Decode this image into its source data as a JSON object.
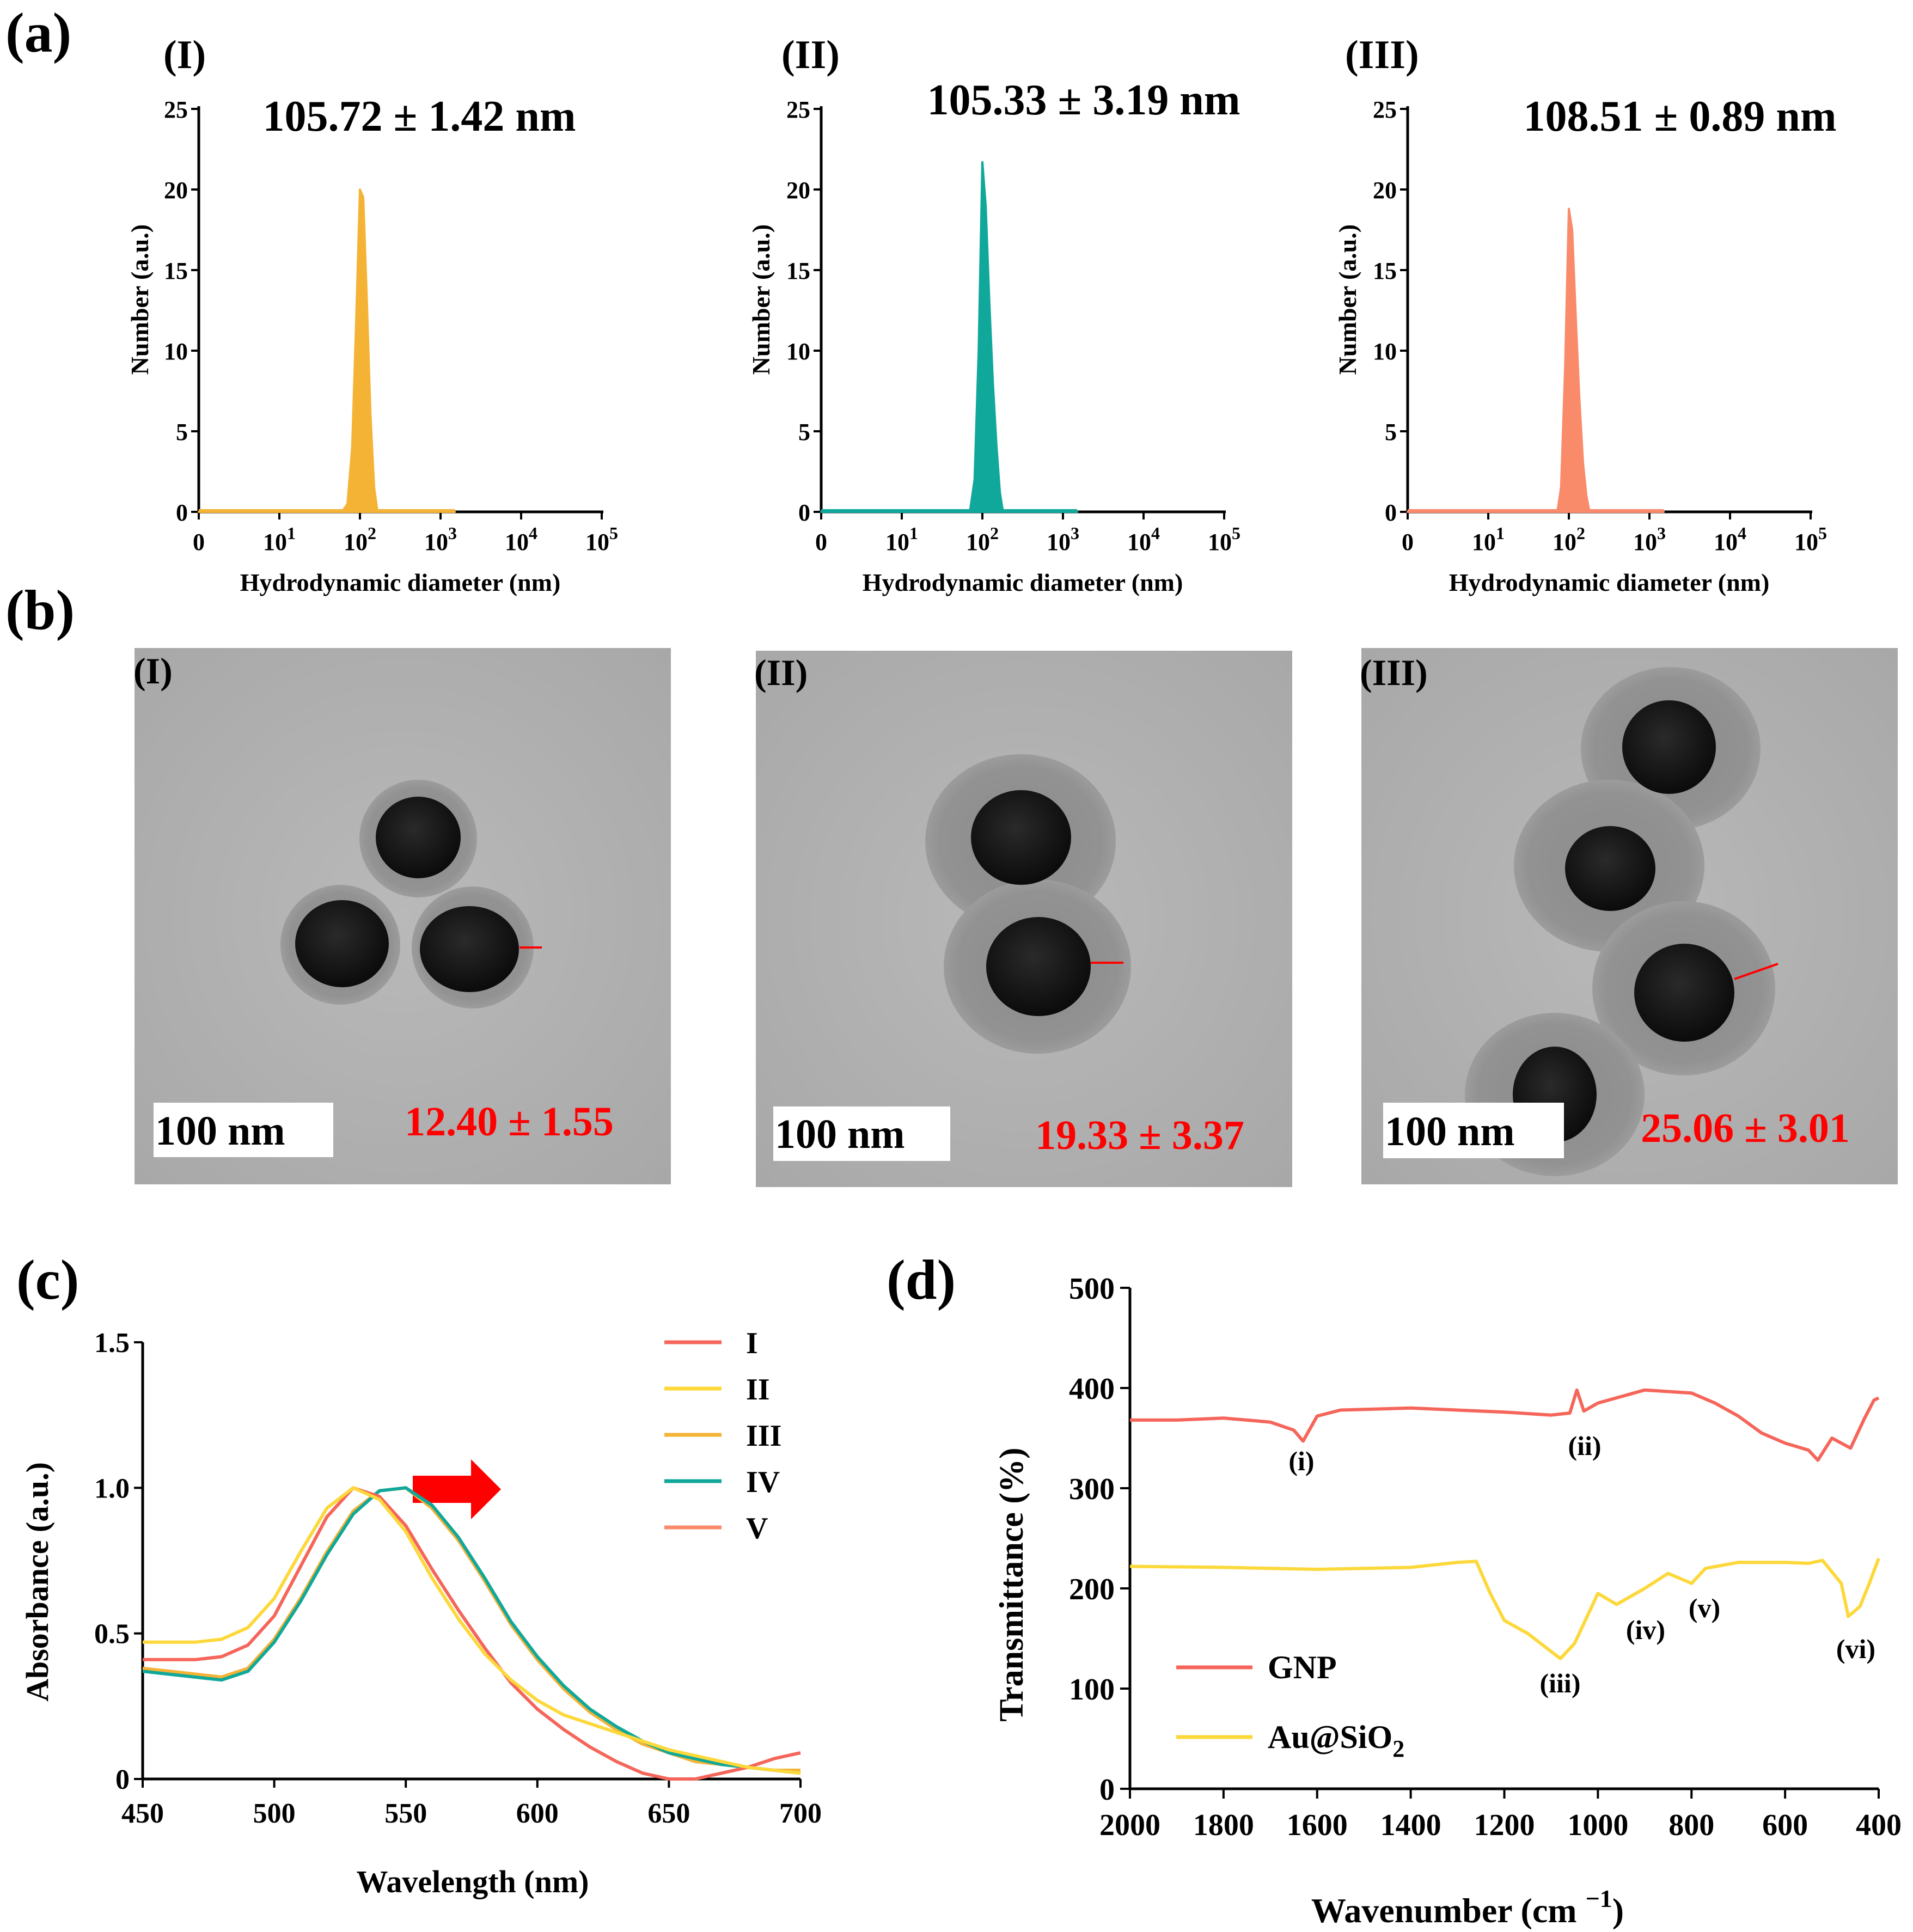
{
  "panel_labels": {
    "a": "(a)",
    "b": "(b)",
    "c": "(c)",
    "d": "(d)"
  },
  "colors": {
    "I": "#f5b335",
    "II": "#10a89a",
    "III": "#f98b6b",
    "red": "#ff0000",
    "gnp": "#f5655a",
    "ausio2": "#fdd83a"
  },
  "dls": [
    {
      "roman": "(I)",
      "stat": "105.72 ± 1.42 nm",
      "ylabel": "Number (a.u.)",
      "xlabel": "Hydrodynamic diameter (nm)",
      "color_key": "I"
    },
    {
      "roman": "(II)",
      "stat": "105.33 ± 3.19 nm",
      "ylabel": "Number (a.u.)",
      "xlabel": "Hydrodynamic diameter (nm)",
      "color_key": "II"
    },
    {
      "roman": "(III)",
      "stat": "108.51 ± 0.89 nm",
      "ylabel": "Number (a.u.)",
      "xlabel": "Hydrodynamic diameter (nm)",
      "color_key": "III"
    }
  ],
  "dls_xticks": [
    {
      "base": "0",
      "exp": ""
    },
    {
      "base": "10",
      "exp": "1"
    },
    {
      "base": "10",
      "exp": "2"
    },
    {
      "base": "10",
      "exp": "3"
    },
    {
      "base": "10",
      "exp": "4"
    },
    {
      "base": "10",
      "exp": "5"
    }
  ],
  "dls_yticks": [
    "0",
    "5",
    "10",
    "15",
    "20",
    "25"
  ],
  "tem": [
    {
      "roman": "(I)",
      "scale": "100 nm",
      "measure": "12.40 ± 1.55"
    },
    {
      "roman": "(II)",
      "scale": "100 nm",
      "measure": "19.33 ± 3.37"
    },
    {
      "roman": "(III)",
      "scale": "100 nm",
      "measure": "25.06 ± 3.01"
    }
  ],
  "chart_data": [
    {
      "panel": "(a)-(I)",
      "type": "area",
      "title": "105.72 ± 1.42 nm",
      "xlabel": "Hydrodynamic diameter (nm)",
      "ylabel": "Number (a.u.)",
      "xscale": "log",
      "ylim": [
        0,
        25
      ],
      "x": [
        1,
        60,
        70,
        80,
        90,
        100,
        110,
        122,
        135,
        150,
        165,
        1500
      ],
      "values": [
        0,
        0,
        0.5,
        4,
        12,
        20,
        19.5,
        13,
        6,
        1.5,
        0,
        0
      ]
    },
    {
      "panel": "(a)-(II)",
      "type": "area",
      "title": "105.33 ± 3.19 nm",
      "xlabel": "Hydrodynamic diameter (nm)",
      "ylabel": "Number (a.u.)",
      "xscale": "log",
      "ylim": [
        0,
        25
      ],
      "x": [
        1,
        70,
        80,
        90,
        100,
        110,
        122,
        135,
        150,
        165,
        180,
        1500
      ],
      "values": [
        0,
        0,
        2,
        10,
        21.7,
        19,
        13,
        8,
        4,
        1.2,
        0,
        0
      ]
    },
    {
      "panel": "(a)-(III)",
      "type": "area",
      "title": "108.51 ± 0.89 nm",
      "xlabel": "Hydrodynamic diameter (nm)",
      "ylabel": "Number (a.u.)",
      "xscale": "log",
      "ylim": [
        0,
        25
      ],
      "x": [
        1,
        72,
        80,
        90,
        100,
        110,
        122,
        135,
        150,
        165,
        180,
        1500
      ],
      "values": [
        0,
        0,
        1.5,
        9,
        18.8,
        17.5,
        12,
        7,
        3,
        1,
        0,
        0
      ]
    },
    {
      "panel": "(c)",
      "type": "line",
      "xlabel": "Wavelength (nm)",
      "ylabel": "Absorbance (a.u.)",
      "xlim": [
        450,
        700
      ],
      "ylim": [
        0,
        1.5
      ],
      "xticks": [
        "450",
        "500",
        "550",
        "600",
        "650",
        "700"
      ],
      "yticks": [
        "0",
        "0.5",
        "1.0",
        "1.5"
      ],
      "categories": [
        450,
        470,
        480,
        490,
        500,
        510,
        520,
        530,
        540,
        550,
        560,
        570,
        580,
        590,
        600,
        610,
        620,
        630,
        640,
        650,
        660,
        670,
        680,
        690,
        700
      ],
      "series": [
        {
          "name": "I",
          "color": "#f5655a",
          "values": [
            0.41,
            0.41,
            0.42,
            0.46,
            0.56,
            0.73,
            0.9,
            1.0,
            0.97,
            0.87,
            0.72,
            0.58,
            0.45,
            0.33,
            0.24,
            0.17,
            0.11,
            0.06,
            0.02,
            0.0,
            0.0,
            0.02,
            0.04,
            0.07,
            0.09
          ]
        },
        {
          "name": "II",
          "color": "#fdd83a",
          "values": [
            0.47,
            0.47,
            0.48,
            0.52,
            0.62,
            0.78,
            0.93,
            1.0,
            0.96,
            0.85,
            0.69,
            0.55,
            0.43,
            0.34,
            0.27,
            0.22,
            0.19,
            0.16,
            0.13,
            0.1,
            0.08,
            0.06,
            0.04,
            0.03,
            0.02
          ]
        },
        {
          "name": "III",
          "color": "#f5b335",
          "values": [
            0.38,
            0.36,
            0.35,
            0.38,
            0.48,
            0.62,
            0.78,
            0.92,
            0.99,
            1.0,
            0.93,
            0.82,
            0.68,
            0.53,
            0.41,
            0.31,
            0.23,
            0.17,
            0.12,
            0.09,
            0.06,
            0.05,
            0.04,
            0.03,
            0.03
          ]
        },
        {
          "name": "IV",
          "color": "#10a89a",
          "values": [
            0.37,
            0.35,
            0.34,
            0.37,
            0.47,
            0.61,
            0.77,
            0.91,
            0.99,
            1.0,
            0.94,
            0.83,
            0.69,
            0.54,
            0.42,
            0.32,
            0.24,
            0.18,
            0.13,
            0.09,
            0.07,
            0.05,
            0.04,
            0.03,
            0.02
          ]
        },
        {
          "name": "V",
          "color": "#f98b6b",
          "values": [
            0.38,
            0.36,
            0.35,
            0.38,
            0.48,
            0.62,
            0.78,
            0.92,
            0.99,
            1.0,
            0.93,
            0.82,
            0.68,
            0.53,
            0.41,
            0.31,
            0.23,
            0.17,
            0.12,
            0.09,
            0.06,
            0.05,
            0.04,
            0.03,
            0.03
          ]
        }
      ],
      "annotations": [
        "red arrow: red-shift of absorbance peak"
      ]
    },
    {
      "panel": "(d)",
      "type": "line",
      "xlabel": "Wavenumber (cm −1)",
      "ylabel": "Transmittance (%)",
      "xlim": [
        2000,
        400
      ],
      "ylim": [
        0,
        500
      ],
      "xticks": [
        "2000",
        "1800",
        "1600",
        "1400",
        "1200",
        "1000",
        "800",
        "600",
        "400"
      ],
      "yticks": [
        "0",
        "100",
        "200",
        "300",
        "400",
        "500"
      ],
      "series": [
        {
          "name": "GNP",
          "color": "#f5655a",
          "x": [
            2000,
            1900,
            1800,
            1700,
            1650,
            1630,
            1600,
            1550,
            1400,
            1200,
            1100,
            1060,
            1045,
            1030,
            1000,
            900,
            800,
            750,
            700,
            650,
            600,
            550,
            530,
            500,
            460,
            430,
            410,
            400
          ],
          "values": [
            368,
            368,
            370,
            366,
            358,
            347,
            372,
            378,
            380,
            376,
            373,
            375,
            398,
            377,
            385,
            398,
            395,
            385,
            372,
            355,
            345,
            338,
            328,
            350,
            340,
            370,
            388,
            390
          ]
        },
        {
          "name": "Au@SiO2",
          "color": "#fdd83a",
          "x": [
            2000,
            1800,
            1600,
            1400,
            1300,
            1260,
            1230,
            1200,
            1150,
            1100,
            1080,
            1050,
            1000,
            960,
            900,
            850,
            800,
            770,
            700,
            600,
            550,
            520,
            480,
            465,
            440,
            420,
            400
          ],
          "values": [
            222,
            221,
            219,
            221,
            226,
            227,
            195,
            168,
            155,
            137,
            130,
            145,
            195,
            184,
            200,
            215,
            205,
            220,
            226,
            226,
            225,
            228,
            205,
            172,
            182,
            205,
            230
          ]
        }
      ],
      "peak_labels": [
        "(i)",
        "(ii)",
        "(iii)",
        "(iv)",
        "(v)",
        "(vi)"
      ]
    }
  ],
  "legend_c": [
    "I",
    "II",
    "III",
    "IV",
    "V"
  ],
  "legend_d_gnp": "GNP",
  "legend_d_au": "Au@SiO",
  "legend_d_sub": "2"
}
